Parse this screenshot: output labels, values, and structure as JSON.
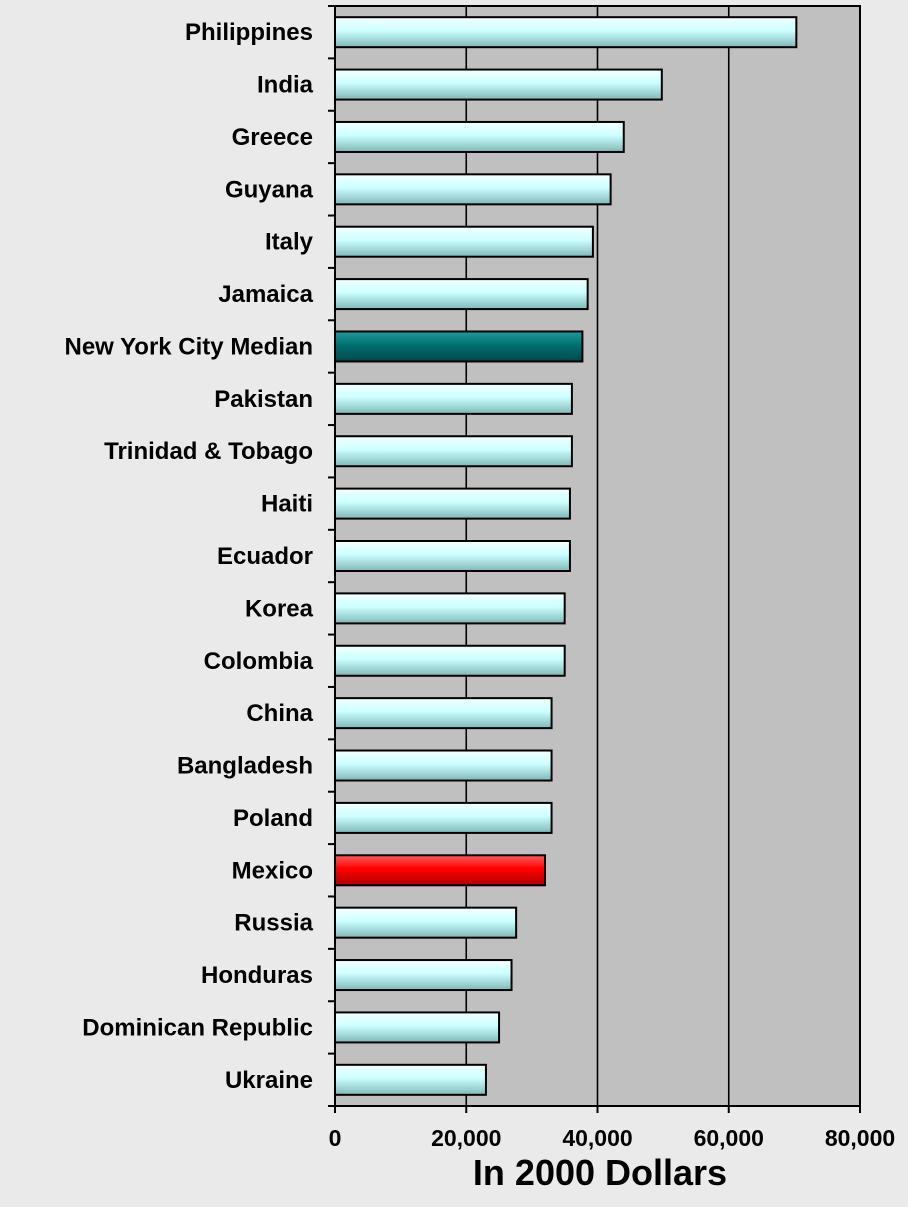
{
  "chart_data": {
    "type": "bar",
    "orientation": "horizontal",
    "categories": [
      "Philippines",
      "India",
      "Greece",
      "Guyana",
      "Italy",
      "Jamaica",
      "New York City Median",
      "Pakistan",
      "Trinidad & Tobago",
      "Haiti",
      "Ecuador",
      "Korea",
      "Colombia",
      "China",
      "Bangladesh",
      "Poland",
      "Mexico",
      "Russia",
      "Honduras",
      "Dominican Republic",
      "Ukraine"
    ],
    "values": [
      70300,
      49800,
      44000,
      42000,
      39300,
      38500,
      37700,
      36100,
      36100,
      35800,
      35800,
      35000,
      35000,
      33000,
      33000,
      33000,
      32000,
      27600,
      26900,
      25000,
      23000
    ],
    "highlight": {
      "New York City Median": "#007070",
      "Mexico": "#ff0000"
    },
    "bar_color": "#ccffff",
    "plot_background": "#c0c0c0",
    "page_background": "#eaeaea",
    "grid": true,
    "xlim": [
      0,
      80000
    ],
    "xticks": [
      0,
      20000,
      40000,
      60000,
      80000
    ],
    "xtick_labels": [
      "0",
      "20,000",
      "40,000",
      "60,000",
      "80,000"
    ],
    "xlabel": "In 2000 Dollars",
    "ylabel": "",
    "title": ""
  }
}
